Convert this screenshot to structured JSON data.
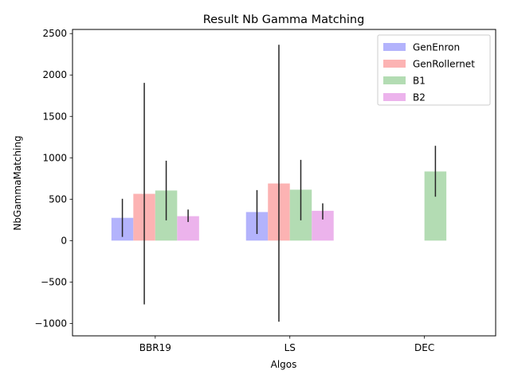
{
  "chart_data": {
    "type": "bar",
    "title": "Result Nb Gamma Matching",
    "xlabel": "Algos",
    "ylabel": "NbGammaMatching",
    "categories": [
      "BBR19",
      "LS",
      "DEC"
    ],
    "ylim": [
      -1150,
      2550
    ],
    "yticks": [
      -1000,
      -500,
      0,
      500,
      1000,
      1500,
      2000,
      2500
    ],
    "ytick_labels": [
      "−1000",
      "−500",
      "0",
      "500",
      "1000",
      "1500",
      "2000",
      "2500"
    ],
    "grid": false,
    "legend": "top-right",
    "series": [
      {
        "name": "GenEnron",
        "color": "#b3b3fc",
        "values": [
          275,
          345,
          null
        ],
        "errors": [
          [
            45,
            505
          ],
          [
            80,
            610
          ],
          null
        ]
      },
      {
        "name": "GenRollernet",
        "color": "#fcb3b3",
        "values": [
          565,
          690,
          null
        ],
        "errors": [
          [
            -770,
            1905
          ],
          [
            -980,
            2365
          ],
          null
        ]
      },
      {
        "name": "B1",
        "color": "#b3dcb3",
        "values": [
          605,
          615,
          835
        ],
        "errors": [
          [
            245,
            965
          ],
          [
            245,
            975
          ],
          [
            530,
            1145
          ]
        ]
      },
      {
        "name": "B2",
        "color": "#ecb3ec",
        "values": [
          295,
          360,
          null
        ],
        "errors": [
          [
            225,
            375
          ],
          [
            255,
            450
          ],
          null
        ]
      }
    ]
  }
}
